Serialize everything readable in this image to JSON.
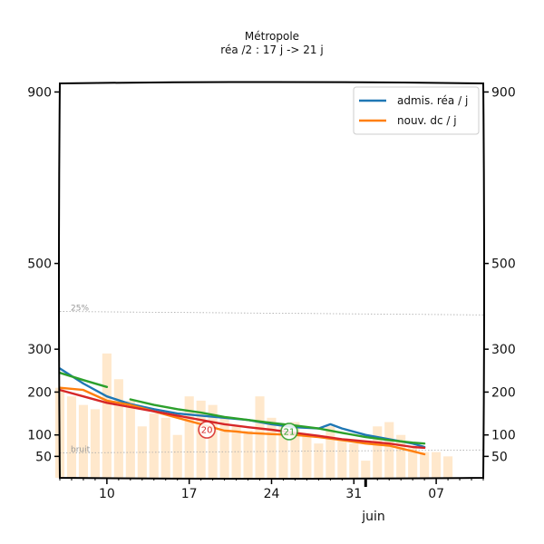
{
  "chart_data": {
    "type": "line",
    "title": "Métropole",
    "subtitle": "réa /2 : 17 j -> 21 j",
    "xlabel": "juin",
    "ylim": [
      0,
      920
    ],
    "y_ticks": [
      {
        "value": 50,
        "label": "50"
      },
      {
        "value": 100,
        "label": "100"
      },
      {
        "value": 200,
        "label": "200"
      },
      {
        "value": 300,
        "label": "300"
      },
      {
        "value": 500,
        "label": "500"
      },
      {
        "value": 900,
        "label": "900"
      }
    ],
    "x_ticks": [
      {
        "day": 10,
        "label": "10"
      },
      {
        "day": 17,
        "label": "17"
      },
      {
        "day": 24,
        "label": "24"
      },
      {
        "day": 31,
        "label": "31"
      },
      {
        "day": 38,
        "label": "07"
      }
    ],
    "xlim": [
      6,
      42
    ],
    "legend": {
      "position": "top-right",
      "entries": [
        {
          "label": "admis. réa / j",
          "color": "#1f77b4"
        },
        {
          "label": "nouv. dc / j",
          "color": "#ff7f0e"
        }
      ]
    },
    "reference_lines": [
      {
        "label": "25%",
        "y": [
          388,
          380
        ]
      },
      {
        "label": "bruit",
        "y": [
          58,
          65
        ]
      }
    ],
    "markers": [
      {
        "label": "20",
        "day": 18.5,
        "y": 112,
        "color": "#d62728"
      },
      {
        "label": "21",
        "day": 25.5,
        "y": 108,
        "color": "#2ca02c"
      }
    ],
    "bars": {
      "color": "#ffe8cc",
      "days": [
        6,
        7,
        8,
        9,
        10,
        11,
        12,
        13,
        14,
        15,
        16,
        17,
        18,
        19,
        20,
        21,
        22,
        23,
        24,
        25,
        26,
        27,
        28,
        29,
        30,
        31,
        32,
        33,
        34,
        35,
        36,
        37,
        38,
        39
      ],
      "values": [
        210,
        190,
        170,
        160,
        290,
        230,
        180,
        120,
        150,
        140,
        100,
        190,
        180,
        170,
        140,
        120,
        110,
        190,
        140,
        120,
        130,
        100,
        80,
        120,
        90,
        80,
        40,
        120,
        130,
        100,
        70,
        60,
        60,
        50
      ]
    },
    "series": [
      {
        "name": "admis. réa / j",
        "color": "#1f77b4",
        "x": [
          6,
          8,
          10,
          12,
          14,
          16,
          18,
          20,
          22,
          24,
          26,
          28,
          29,
          30,
          32,
          34,
          36,
          37
        ],
        "y": [
          255,
          220,
          190,
          172,
          160,
          150,
          145,
          140,
          135,
          125,
          118,
          115,
          125,
          115,
          100,
          90,
          80,
          72
        ]
      },
      {
        "name": "nouv. dc / j",
        "color": "#ff7f0e",
        "x": [
          6,
          8,
          10,
          12,
          14,
          16,
          18,
          20,
          21,
          22,
          24,
          26,
          28,
          30,
          32,
          34,
          36,
          37
        ],
        "y": [
          210,
          205,
          180,
          170,
          155,
          140,
          125,
          110,
          108,
          105,
          102,
          100,
          95,
          88,
          80,
          75,
          62,
          55
        ]
      },
      {
        "color": "#2ca02c",
        "x": [
          6,
          8,
          10
        ],
        "y": [
          245,
          228,
          212
        ]
      },
      {
        "color": "#2ca02c",
        "x": [
          12,
          14,
          16,
          18,
          20,
          22,
          24,
          26,
          28,
          30,
          32,
          34,
          36,
          37
        ],
        "y": [
          183,
          170,
          160,
          152,
          142,
          135,
          128,
          122,
          115,
          105,
          95,
          88,
          82,
          80
        ]
      },
      {
        "color": "#d62728",
        "x": [
          6,
          8,
          10,
          12,
          14,
          16,
          18,
          20,
          22,
          24,
          26,
          28,
          30,
          32,
          34,
          36,
          37
        ],
        "y": [
          205,
          190,
          175,
          165,
          155,
          145,
          135,
          125,
          118,
          112,
          105,
          98,
          90,
          85,
          80,
          72,
          70
        ]
      }
    ]
  }
}
